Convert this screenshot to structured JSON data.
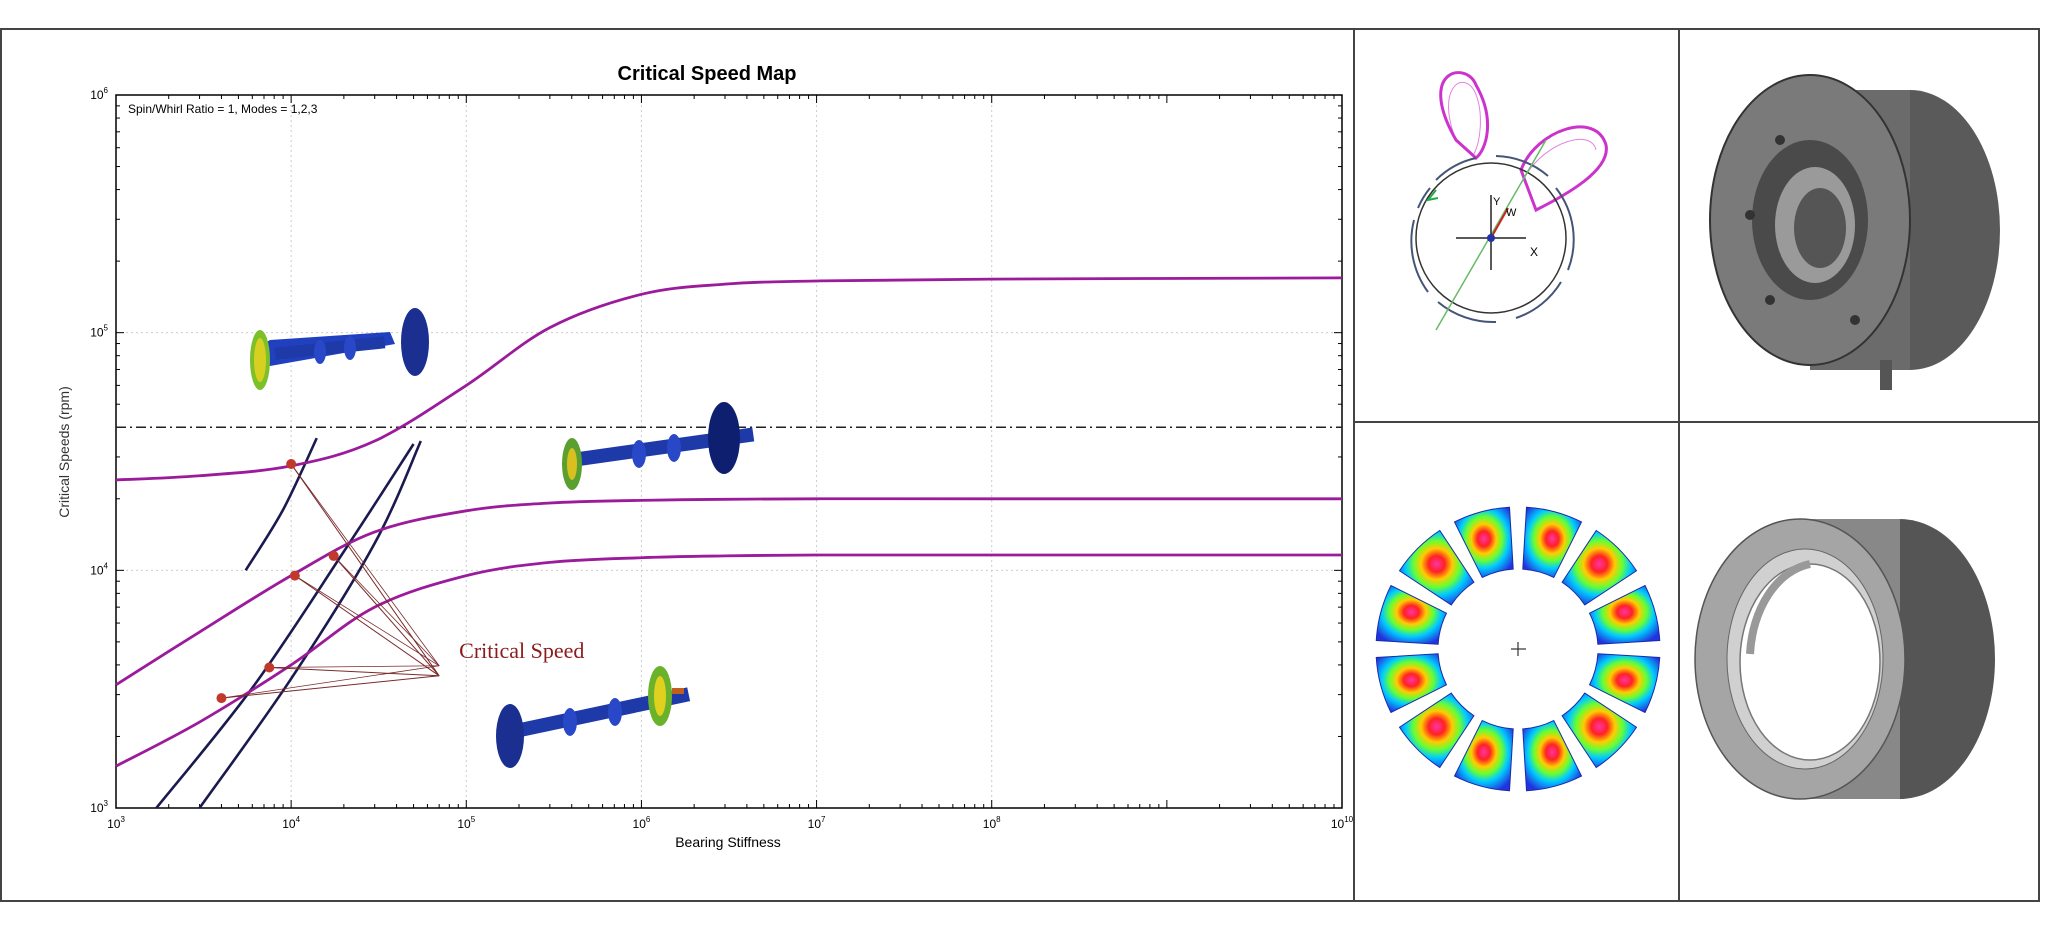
{
  "chart_data": {
    "type": "line",
    "title": "Critical Speed Map",
    "annotation": "Spin/Whirl Ratio = 1, Modes = 1,2,3",
    "xlabel": "Bearing Stiffness",
    "ylabel": "Critical Speeds (rpm)",
    "x_scale": "log",
    "y_scale": "log",
    "xlim": [
      1000,
      10000000000
    ],
    "ylim": [
      1000,
      1000000
    ],
    "grid": true,
    "x_ticks": [
      {
        "value": 1000,
        "base": "10",
        "exp": "3"
      },
      {
        "value": 10000,
        "base": "10",
        "exp": "4"
      },
      {
        "value": 100000,
        "base": "10",
        "exp": "5"
      },
      {
        "value": 1000000,
        "base": "10",
        "exp": "6"
      },
      {
        "value": 10000000,
        "base": "10",
        "exp": "7"
      },
      {
        "value": 100000000,
        "base": "10",
        "exp": "8"
      },
      {
        "value": 10000000000,
        "base": "10",
        "exp": "10"
      }
    ],
    "y_ticks": [
      {
        "value": 1000,
        "base": "10",
        "exp": "3"
      },
      {
        "value": 10000,
        "base": "10",
        "exp": "4"
      },
      {
        "value": 100000,
        "base": "10",
        "exp": "5"
      },
      {
        "value": 1000000,
        "base": "10",
        "exp": "6"
      }
    ],
    "series": [
      {
        "color": "#9b1b9b",
        "x": [
          1000,
          3000,
          10000,
          30000,
          100000,
          300000,
          1000000,
          3000000,
          10000000,
          100000000,
          10000000000
        ],
        "y": [
          1500,
          2300,
          4000,
          7000,
          9500,
          10800,
          11300,
          11500,
          11600,
          11600,
          11600
        ]
      },
      {
        "color": "#9b1b9b",
        "x": [
          1000,
          3000,
          10000,
          30000,
          100000,
          300000,
          1000000,
          3000000,
          10000000,
          100000000,
          10000000000
        ],
        "y": [
          3300,
          5500,
          9500,
          14500,
          17800,
          19200,
          19700,
          19900,
          20000,
          20000,
          20000
        ]
      },
      {
        "color": "#9b1b9b",
        "x": [
          1000,
          3000,
          10000,
          30000,
          100000,
          300000,
          1000000,
          3000000,
          10000000,
          100000000,
          10000000000
        ],
        "y": [
          24000,
          25000,
          27500,
          35000,
          60000,
          105000,
          145000,
          160000,
          165000,
          168000,
          170000
        ]
      }
    ],
    "stiffness_lines": [
      {
        "color": "#1a1a50",
        "x": [
          1700,
          6000,
          20000,
          50000
        ],
        "y": [
          1000,
          3200,
          12000,
          34000
        ]
      },
      {
        "color": "#1a1a50",
        "x": [
          3000,
          10000,
          30000,
          55000
        ],
        "y": [
          1000,
          3500,
          13000,
          35000
        ]
      },
      {
        "color": "#1a1a50",
        "x": [
          5500,
          9000,
          14000
        ],
        "y": [
          10000,
          18000,
          36000
        ]
      }
    ],
    "operating_speed": 40000,
    "critical_points": [
      {
        "x": 4000,
        "y": 2900
      },
      {
        "x": 7500,
        "y": 3900
      },
      {
        "x": 10500,
        "y": 9500
      },
      {
        "x": 17500,
        "y": 11500
      },
      {
        "x": 10000,
        "y": 28000
      }
    ],
    "callout": {
      "label": "Critical Speed",
      "anchor_x": 70000,
      "anchor_y": 3600
    }
  },
  "colors": {
    "frame": "#444444",
    "curve": "#9b1b9b",
    "stiffness_line": "#1a1a50",
    "point": "#c0392b",
    "callout": "#8b1a1a",
    "pad_orbit": "#cc33cc",
    "render_gray": "#6b6b6b"
  },
  "panels": {
    "bearing_pad_plot": {
      "axis_x": "X",
      "axis_y": "Y",
      "axis_w": "W"
    },
    "pressure_contour": {
      "pad_count": 12
    },
    "bearing_render_top": {
      "icon": "bearing-housing-3d"
    },
    "bearing_render_bottom": {
      "icon": "foil-bearing-3d"
    }
  }
}
